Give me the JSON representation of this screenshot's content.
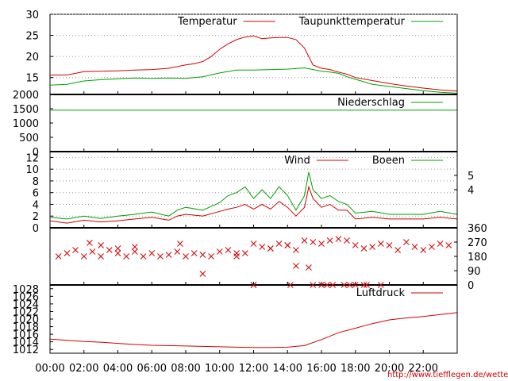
{
  "colors": {
    "red": "#d40000",
    "green": "#00a000",
    "frame": "#000000",
    "grid": "#999999"
  },
  "credit": "http://www.tiefflegen.de/wetter/",
  "chart_data": [
    {
      "type": "line",
      "panel": "temperature",
      "ylim": [
        11,
        30
      ],
      "yticks": [
        "30",
        "25",
        "20",
        "15"
      ],
      "legend_placement": "top-right",
      "series": [
        {
          "name": "Temperatur",
          "color": "#d40000",
          "x": [
            "00:00",
            "01:00",
            "02:00",
            "03:00",
            "04:00",
            "05:00",
            "06:00",
            "07:00",
            "08:00",
            "08:30",
            "09:00",
            "09:30",
            "10:00",
            "10:30",
            "11:00",
            "11:30",
            "12:00",
            "12:30",
            "13:00",
            "13:30",
            "14:00",
            "14:30",
            "15:00",
            "15:30",
            "16:00",
            "16:30",
            "17:00",
            "17:30",
            "18:00",
            "19:00",
            "20:00",
            "21:00",
            "22:00",
            "23:00",
            "23:59"
          ],
          "values": [
            15.6,
            15.6,
            16.4,
            16.5,
            16.6,
            16.8,
            16.9,
            17.2,
            18.0,
            18.3,
            18.8,
            20.0,
            21.7,
            23.0,
            24.0,
            24.6,
            24.9,
            24.2,
            24.4,
            24.5,
            24.5,
            24.0,
            22.0,
            18.0,
            17.2,
            16.9,
            16.3,
            15.8,
            15.0,
            14.3,
            13.6,
            13.0,
            12.5,
            12.1,
            11.8
          ]
        },
        {
          "name": "Taupunkttemperatur",
          "color": "#00a000",
          "x": [
            "00:00",
            "01:00",
            "02:00",
            "03:00",
            "04:00",
            "05:00",
            "06:00",
            "07:00",
            "08:00",
            "09:00",
            "10:00",
            "11:00",
            "12:00",
            "13:00",
            "14:00",
            "15:00",
            "16:00",
            "16:30",
            "17:00",
            "17:30",
            "18:00",
            "19:00",
            "20:00",
            "21:00",
            "22:00",
            "23:00",
            "23:59"
          ],
          "values": [
            13.2,
            13.4,
            14.2,
            14.5,
            14.7,
            14.9,
            14.8,
            14.9,
            14.8,
            15.2,
            16.1,
            16.8,
            16.8,
            16.9,
            17.0,
            17.3,
            16.5,
            16.3,
            16.0,
            15.2,
            14.6,
            13.4,
            12.9,
            12.4,
            11.9,
            11.5,
            11.3
          ]
        }
      ]
    },
    {
      "type": "line",
      "panel": "precipitation",
      "ylim": [
        0,
        2000
      ],
      "yticks": [
        "2000",
        "1500",
        "1000",
        "500",
        "0"
      ],
      "series": [
        {
          "name": "Niederschlag",
          "color": "#00a000",
          "x": [
            "00:00",
            "23:59"
          ],
          "values": [
            1450,
            1450
          ]
        }
      ]
    },
    {
      "type": "line",
      "panel": "wind",
      "ylim": [
        0,
        13
      ],
      "yticks": [
        "12",
        "10",
        "8",
        "6",
        "4",
        "2",
        "0"
      ],
      "yticks_right": [
        "5",
        "4"
      ],
      "series": [
        {
          "name": "Wind",
          "color": "#d40000",
          "x": [
            "00:00",
            "01:00",
            "02:00",
            "03:00",
            "04:00",
            "05:00",
            "06:00",
            "07:00",
            "07:30",
            "08:00",
            "09:00",
            "10:00",
            "10:30",
            "11:00",
            "11:30",
            "12:00",
            "12:30",
            "13:00",
            "13:30",
            "14:00",
            "14:30",
            "15:00",
            "15:15",
            "15:30",
            "16:00",
            "16:30",
            "17:00",
            "17:30",
            "18:00",
            "19:00",
            "20:00",
            "21:00",
            "22:00",
            "23:00",
            "23:59"
          ],
          "values": [
            1.2,
            0.8,
            1.3,
            1.0,
            1.2,
            1.5,
            1.8,
            1.3,
            2.0,
            2.3,
            2.0,
            2.8,
            3.2,
            3.5,
            4.0,
            3.2,
            4.0,
            3.2,
            4.5,
            3.5,
            2.0,
            3.5,
            7.0,
            5.0,
            3.5,
            4.0,
            3.0,
            3.0,
            1.5,
            1.8,
            1.5,
            1.5,
            1.5,
            1.8,
            1.5
          ]
        },
        {
          "name": "Boeen",
          "color": "#00a000",
          "x": [
            "00:00",
            "01:00",
            "02:00",
            "03:00",
            "04:00",
            "05:00",
            "06:00",
            "07:00",
            "07:30",
            "08:00",
            "09:00",
            "10:00",
            "10:30",
            "11:00",
            "11:30",
            "12:00",
            "12:30",
            "13:00",
            "13:30",
            "14:00",
            "14:30",
            "15:00",
            "15:15",
            "15:30",
            "16:00",
            "16:30",
            "17:00",
            "17:30",
            "18:00",
            "19:00",
            "20:00",
            "21:00",
            "22:00",
            "23:00",
            "23:59"
          ],
          "values": [
            1.8,
            1.5,
            2.0,
            1.6,
            2.0,
            2.3,
            2.7,
            2.0,
            3.0,
            3.5,
            3.0,
            4.3,
            5.5,
            6.0,
            7.0,
            5.0,
            6.5,
            5.0,
            7.0,
            5.5,
            3.0,
            5.5,
            9.5,
            6.5,
            5.0,
            5.5,
            4.5,
            4.0,
            2.5,
            2.8,
            2.3,
            2.3,
            2.3,
            2.8,
            2.3
          ]
        }
      ]
    },
    {
      "type": "scatter",
      "panel": "wind-direction",
      "ylim": [
        0,
        360
      ],
      "yticks_right": [
        "360",
        "270",
        "180",
        "90",
        "0"
      ],
      "series": [
        {
          "name": "",
          "color": "#d40000",
          "marker": "x",
          "x": [
            "00:30",
            "01:00",
            "01:30",
            "02:00",
            "02:30",
            "03:00",
            "03:30",
            "04:00",
            "04:30",
            "05:00",
            "05:30",
            "06:00",
            "06:30",
            "07:00",
            "07:30",
            "08:00",
            "08:30",
            "09:00",
            "09:30",
            "10:00",
            "10:30",
            "11:00",
            "11:30",
            "12:00",
            "12:30",
            "13:00",
            "13:30",
            "14:00",
            "14:30",
            "15:00",
            "15:30",
            "16:00",
            "16:30",
            "17:00",
            "17:30",
            "18:00",
            "18:30",
            "19:00",
            "19:30",
            "20:00",
            "20:30",
            "21:00",
            "21:30",
            "22:00",
            "22:30",
            "23:00",
            "23:30",
            "02:20",
            "09:00",
            "14:30",
            "15:15",
            "12:00",
            "16:00",
            "16:40",
            "17:20",
            "18:00",
            "18:40",
            "19:30",
            "03:00",
            "05:00",
            "07:40",
            "11:00",
            "13:00",
            "14:00",
            "04:00",
            "12:00",
            "14:10",
            "15:30",
            "16:20",
            "17:40",
            "18:30"
          ],
          "values": [
            180,
            200,
            220,
            180,
            210,
            180,
            220,
            200,
            180,
            210,
            180,
            200,
            180,
            190,
            210,
            180,
            200,
            190,
            180,
            210,
            220,
            180,
            200,
            260,
            240,
            230,
            260,
            250,
            220,
            280,
            270,
            260,
            280,
            290,
            280,
            250,
            230,
            240,
            260,
            250,
            220,
            270,
            240,
            220,
            240,
            260,
            250,
            265,
            70,
            120,
            110,
            0,
            0,
            0,
            0,
            0,
            0,
            0,
            250,
            240,
            260,
            200,
            230,
            250,
            230,
            0,
            0,
            0,
            0,
            0,
            0
          ]
        }
      ]
    },
    {
      "type": "line",
      "panel": "pressure",
      "ylim": [
        1011,
        1029
      ],
      "yticks": [
        "1028",
        "1026",
        "1024",
        "1022",
        "1020",
        "1018",
        "1016",
        "1014",
        "1012"
      ],
      "xticks": [
        "00:00",
        "02:00",
        "04:00",
        "06:00",
        "08:00",
        "10:00",
        "12:00",
        "14:00",
        "16:00",
        "18:00",
        "20:00",
        "22:00"
      ],
      "series": [
        {
          "name": "Luftdruck",
          "color": "#d40000",
          "x": [
            "00:00",
            "01:00",
            "02:00",
            "03:00",
            "04:00",
            "05:00",
            "06:00",
            "07:00",
            "08:00",
            "09:00",
            "10:00",
            "11:00",
            "12:00",
            "13:00",
            "14:00",
            "15:00",
            "16:00",
            "17:00",
            "18:00",
            "19:00",
            "20:00",
            "21:00",
            "22:00",
            "23:00",
            "23:59"
          ],
          "values": [
            1014.7,
            1014.4,
            1014.1,
            1013.9,
            1013.6,
            1013.3,
            1013.1,
            1013.0,
            1012.9,
            1012.8,
            1012.7,
            1012.6,
            1012.5,
            1012.5,
            1012.6,
            1013.0,
            1014.6,
            1016.4,
            1017.6,
            1018.8,
            1019.8,
            1020.3,
            1020.7,
            1021.2,
            1021.7
          ]
        }
      ]
    }
  ]
}
